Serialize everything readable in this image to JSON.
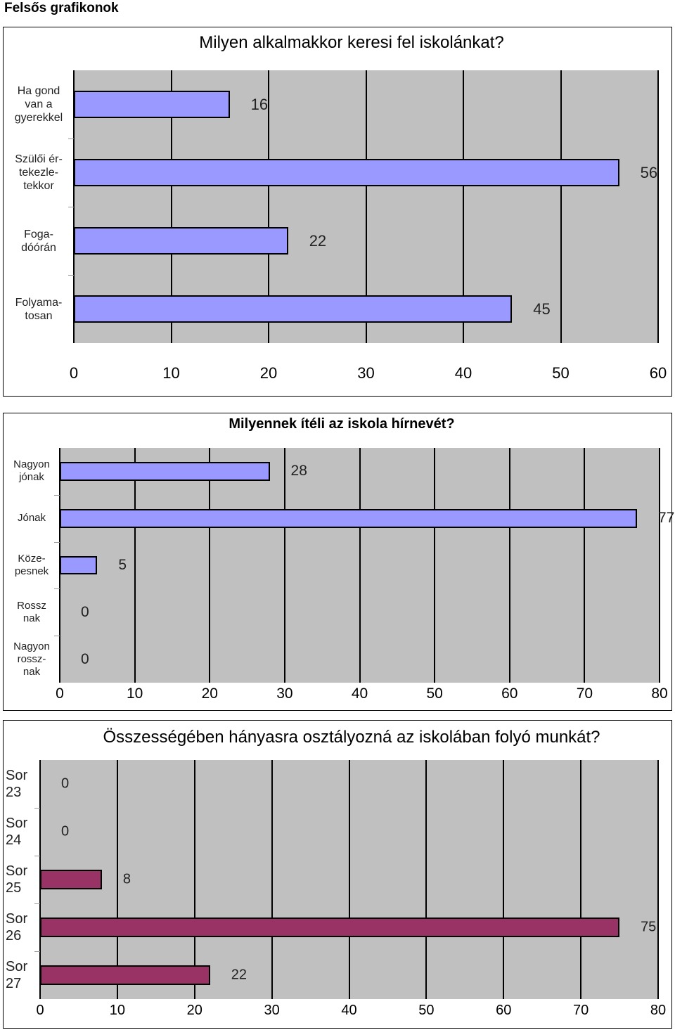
{
  "heading": "Felsős grafikonok",
  "chart_data": [
    {
      "type": "bar",
      "orientation": "horizontal",
      "title": "Milyen alkalmakkor keresi fel iskolánkat?",
      "categories": [
        "Ha gond\nvan a\ngyerekkel",
        "Szülői ér-\ntekezle-\ntekkor",
        "Foga-\ndóórán",
        "Folyama-\ntosan"
      ],
      "values": [
        16,
        56,
        22,
        45
      ],
      "color": "#9999ff",
      "xlim": [
        0,
        60
      ],
      "xticks": [
        0,
        10,
        20,
        30,
        40,
        50,
        60
      ],
      "grid": true
    },
    {
      "type": "bar",
      "orientation": "horizontal",
      "title": "Milyennek ítéli az iskola hírnevét?",
      "categories": [
        "Nagyon\njónak",
        "Jónak",
        "Köze-\npesnek",
        "Rossz\nnak",
        "Nagyon\nrossz-\nnak"
      ],
      "values": [
        28,
        77,
        5,
        0,
        0
      ],
      "color": "#9999ff",
      "xlim": [
        0,
        80
      ],
      "xticks": [
        0,
        10,
        20,
        30,
        40,
        50,
        60,
        70,
        80
      ],
      "grid": true
    },
    {
      "type": "bar",
      "orientation": "horizontal",
      "title": "Összességében hányasra osztályozná az iskolában folyó munkát?",
      "categories": [
        "Sor\n23",
        "Sor\n24",
        "Sor\n25",
        "Sor\n26",
        "Sor\n27"
      ],
      "values": [
        0,
        0,
        8,
        75,
        22
      ],
      "color": "#993366",
      "xlim": [
        0,
        80
      ],
      "xticks": [
        0,
        10,
        20,
        30,
        40,
        50,
        60,
        70,
        80
      ],
      "grid": true
    }
  ]
}
